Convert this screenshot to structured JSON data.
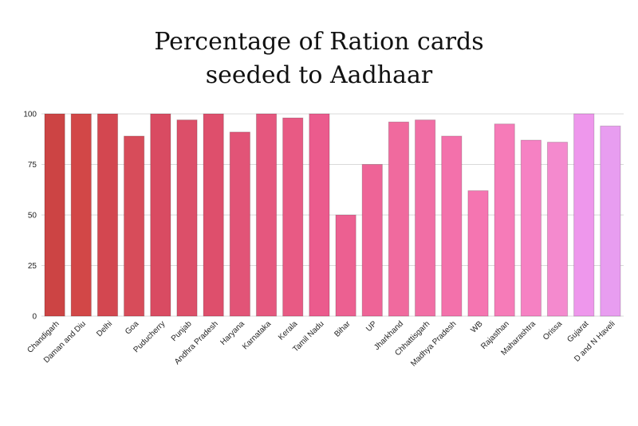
{
  "chart_data": {
    "type": "bar",
    "title_lines": [
      "Percentage of Ration cards",
      "seeded to Aadhaar"
    ],
    "xlabel": "",
    "ylabel": "",
    "ylim": [
      0,
      100
    ],
    "yticks": [
      "0",
      "25",
      "50",
      "75",
      "100"
    ],
    "grid": true,
    "categories": [
      "Chandigarh",
      "Daman and Diu",
      "Delhi",
      "Goa",
      "Puducherry",
      "Punjab",
      "Andhra Pradesh",
      "Haryana",
      "Karnataka",
      "Kerala",
      "Tamil Nadu",
      "Bihar",
      "UP",
      "Jharkhand",
      "Chhattisgarh",
      "Madhya Pradesh",
      "WB",
      "Rajasthan",
      "Maharashtra",
      "Orissa",
      "Gujarat",
      "D and N Haveli"
    ],
    "values": [
      100,
      100,
      100,
      89,
      100,
      97,
      100,
      91,
      100,
      98,
      100,
      50,
      75,
      96,
      97,
      89,
      62,
      95,
      87,
      86,
      100,
      94
    ],
    "colors": [
      "#cc4444",
      "#d24747",
      "#d34750",
      "#d74c5a",
      "#d94b62",
      "#dc4f69",
      "#de4f6c",
      "#e25477",
      "#e5577e",
      "#e85a84",
      "#eb5b8d",
      "#ec6091",
      "#ee6497",
      "#f06a9e",
      "#f16ea5",
      "#f371ab",
      "#f575b1",
      "#f67bb8",
      "#f681c3",
      "#f48ace",
      "#ee97ec",
      "#e89df0"
    ]
  }
}
